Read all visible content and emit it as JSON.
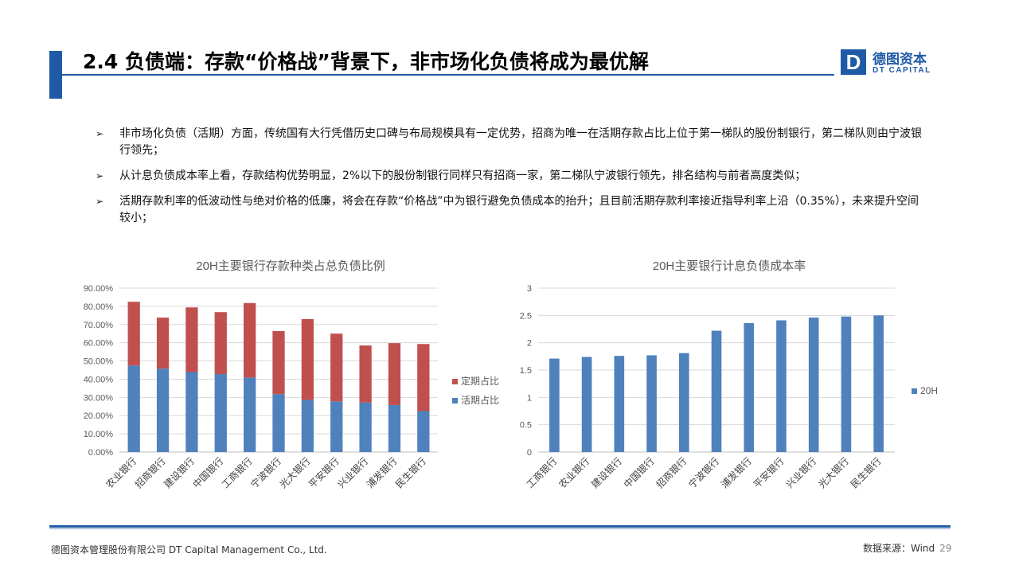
{
  "header": {
    "title": "2.4 负债端：存款“价格战”背景下，非市场化负债将成为最优解",
    "logo_mark": "D",
    "logo_cn": "德图资本",
    "logo_en": "DT CAPITAL",
    "brand_color": "#1f5aa6"
  },
  "bullets": [
    {
      "marker": "➢",
      "text": "非市场化负债（活期）方面，传统国有大行凭借历史口碑与布局规模具有一定优势，招商为唯一在活期存款占比上位于第一梯队的股份制银行，第二梯队则由宁波银行领先；"
    },
    {
      "marker": "➢",
      "text": "从计息负债成本率上看，存款结构优势明显，2%以下的股份制银行同样只有招商一家，第二梯队宁波银行领先，排名结构与前者高度类似；"
    },
    {
      "marker": "➢",
      "text": "活期存款利率的低波动性与绝对价格的低廉，将会在存款“价格战”中为银行避免负债成本的抬升；且目前活期存款利率接近指导利率上沿（0.35%），未来提升空间较小；"
    }
  ],
  "chart_data": [
    {
      "type": "bar",
      "stacked": true,
      "title": "20H主要银行存款种类占总负债比例",
      "categories": [
        "农业银行",
        "招商银行",
        "建设银行",
        "中国银行",
        "工商银行",
        "宁波银行",
        "光大银行",
        "平安银行",
        "兴业银行",
        "浦发银行",
        "民生银行"
      ],
      "series": [
        {
          "name": "活期占比",
          "color": "#4f81bd",
          "values": [
            47.5,
            45.8,
            43.9,
            42.8,
            40.9,
            31.8,
            28.6,
            27.8,
            27.2,
            25.8,
            22.5
          ]
        },
        {
          "name": "定期占比",
          "color": "#c0504d",
          "values": [
            35.0,
            28.0,
            35.5,
            34.0,
            40.9,
            34.6,
            44.4,
            37.2,
            31.3,
            34.0,
            36.8
          ]
        }
      ],
      "ylim": [
        0,
        90
      ],
      "yticks": [
        "0.00%",
        "10.00%",
        "20.00%",
        "30.00%",
        "40.00%",
        "50.00%",
        "60.00%",
        "70.00%",
        "80.00%",
        "90.00%"
      ],
      "legend": "right",
      "grid": true
    },
    {
      "type": "bar",
      "title": "20H主要银行计息负债成本率",
      "categories": [
        "工商银行",
        "农业银行",
        "建设银行",
        "中国银行",
        "招商银行",
        "宁波银行",
        "浦发银行",
        "平安银行",
        "兴业银行",
        "光大银行",
        "民生银行"
      ],
      "series": [
        {
          "name": "20H",
          "color": "#4f81bd",
          "values": [
            1.71,
            1.74,
            1.76,
            1.77,
            1.81,
            2.22,
            2.36,
            2.41,
            2.46,
            2.48,
            2.5
          ]
        }
      ],
      "ylim": [
        0,
        3
      ],
      "yticks": [
        "0",
        "0.5",
        "1",
        "1.5",
        "2",
        "2.5",
        "3"
      ],
      "legend": "right",
      "grid": true
    }
  ],
  "footer": {
    "company": "德图资本管理股份有限公司  DT Capital Management  Co., Ltd.",
    "source": "数据来源：Wind",
    "page": "29"
  }
}
